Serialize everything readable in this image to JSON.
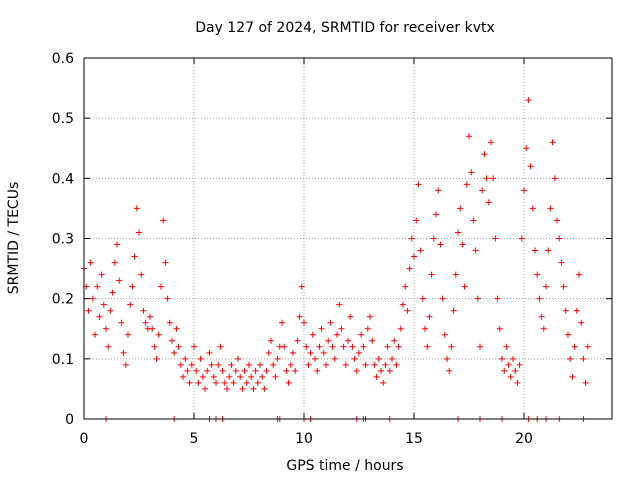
{
  "chart_data": {
    "type": "scatter",
    "title": "Day 127 of 2024, SRMTID for receiver kvtx",
    "xlabel": "GPS time / hours",
    "ylabel": "SRMTID / TECUs",
    "xlim": [
      0,
      24
    ],
    "ylim": [
      0,
      0.6
    ],
    "x_ticks": [
      0,
      5,
      10,
      15,
      20
    ],
    "y_ticks": [
      0,
      0.1,
      0.2,
      0.3,
      0.4,
      0.5,
      0.6
    ],
    "x_tick_labels": [
      "0",
      "5",
      "10",
      "15",
      "20"
    ],
    "y_tick_labels": [
      "0",
      "0.1",
      "0.2",
      "0.3",
      "0.4",
      "0.5",
      "0.6"
    ],
    "grid": true,
    "marker": "plus",
    "series": [
      {
        "name": "SRMTID",
        "color": "#ff0000",
        "points": [
          [
            0.0,
            0.25
          ],
          [
            0.1,
            0.22
          ],
          [
            0.2,
            0.18
          ],
          [
            0.3,
            0.26
          ],
          [
            0.4,
            0.2
          ],
          [
            0.5,
            0.14
          ],
          [
            0.6,
            0.22
          ],
          [
            0.7,
            0.17
          ],
          [
            0.8,
            0.24
          ],
          [
            0.9,
            0.19
          ],
          [
            1.0,
            0.15
          ],
          [
            1.1,
            0.12
          ],
          [
            1.2,
            0.18
          ],
          [
            1.3,
            0.21
          ],
          [
            1.4,
            0.26
          ],
          [
            1.5,
            0.29
          ],
          [
            1.6,
            0.23
          ],
          [
            1.7,
            0.16
          ],
          [
            1.8,
            0.11
          ],
          [
            1.9,
            0.09
          ],
          [
            2.0,
            0.14
          ],
          [
            2.1,
            0.19
          ],
          [
            2.2,
            0.22
          ],
          [
            2.3,
            0.27
          ],
          [
            2.4,
            0.35
          ],
          [
            2.5,
            0.31
          ],
          [
            2.6,
            0.24
          ],
          [
            2.7,
            0.18
          ],
          [
            2.8,
            0.16
          ],
          [
            2.9,
            0.15
          ],
          [
            3.0,
            0.17
          ],
          [
            3.1,
            0.15
          ],
          [
            3.2,
            0.12
          ],
          [
            3.3,
            0.1
          ],
          [
            3.4,
            0.14
          ],
          [
            3.5,
            0.22
          ],
          [
            3.6,
            0.33
          ],
          [
            3.7,
            0.26
          ],
          [
            3.8,
            0.2
          ],
          [
            3.9,
            0.16
          ],
          [
            4.0,
            0.13
          ],
          [
            4.1,
            0.11
          ],
          [
            4.2,
            0.15
          ],
          [
            4.3,
            0.12
          ],
          [
            4.4,
            0.09
          ],
          [
            4.5,
            0.07
          ],
          [
            4.6,
            0.1
          ],
          [
            4.7,
            0.08
          ],
          [
            4.8,
            0.06
          ],
          [
            4.9,
            0.09
          ],
          [
            5.0,
            0.12
          ],
          [
            5.1,
            0.08
          ],
          [
            5.2,
            0.06
          ],
          [
            5.3,
            0.1
          ],
          [
            5.4,
            0.07
          ],
          [
            5.5,
            0.05
          ],
          [
            5.6,
            0.08
          ],
          [
            5.7,
            0.11
          ],
          [
            5.8,
            0.09
          ],
          [
            5.9,
            0.07
          ],
          [
            6.0,
            0.06
          ],
          [
            6.1,
            0.09
          ],
          [
            6.2,
            0.12
          ],
          [
            6.3,
            0.08
          ],
          [
            6.4,
            0.06
          ],
          [
            6.5,
            0.05
          ],
          [
            6.6,
            0.07
          ],
          [
            6.7,
            0.09
          ],
          [
            6.8,
            0.06
          ],
          [
            6.9,
            0.08
          ],
          [
            7.0,
            0.1
          ],
          [
            7.1,
            0.07
          ],
          [
            7.2,
            0.05
          ],
          [
            7.3,
            0.08
          ],
          [
            7.4,
            0.06
          ],
          [
            7.5,
            0.09
          ],
          [
            7.6,
            0.07
          ],
          [
            7.7,
            0.05
          ],
          [
            7.8,
            0.08
          ],
          [
            7.9,
            0.06
          ],
          [
            8.0,
            0.09
          ],
          [
            8.1,
            0.07
          ],
          [
            8.2,
            0.05
          ],
          [
            8.3,
            0.08
          ],
          [
            8.4,
            0.11
          ],
          [
            8.5,
            0.13
          ],
          [
            8.6,
            0.09
          ],
          [
            8.7,
            0.07
          ],
          [
            8.8,
            0.1
          ],
          [
            8.9,
            0.12
          ],
          [
            9.0,
            0.16
          ],
          [
            9.1,
            0.12
          ],
          [
            9.2,
            0.08
          ],
          [
            9.3,
            0.06
          ],
          [
            9.4,
            0.09
          ],
          [
            9.5,
            0.11
          ],
          [
            9.6,
            0.08
          ],
          [
            9.7,
            0.13
          ],
          [
            9.8,
            0.17
          ],
          [
            9.9,
            0.22
          ],
          [
            10.0,
            0.16
          ],
          [
            10.1,
            0.12
          ],
          [
            10.2,
            0.09
          ],
          [
            10.3,
            0.11
          ],
          [
            10.4,
            0.14
          ],
          [
            10.5,
            0.1
          ],
          [
            10.6,
            0.08
          ],
          [
            10.7,
            0.12
          ],
          [
            10.8,
            0.15
          ],
          [
            10.9,
            0.11
          ],
          [
            11.0,
            0.09
          ],
          [
            11.1,
            0.13
          ],
          [
            11.2,
            0.16
          ],
          [
            11.3,
            0.12
          ],
          [
            11.4,
            0.1
          ],
          [
            11.5,
            0.14
          ],
          [
            11.6,
            0.19
          ],
          [
            11.7,
            0.15
          ],
          [
            11.8,
            0.12
          ],
          [
            11.9,
            0.09
          ],
          [
            12.0,
            0.13
          ],
          [
            12.1,
            0.17
          ],
          [
            12.2,
            0.12
          ],
          [
            12.3,
            0.1
          ],
          [
            12.4,
            0.08
          ],
          [
            12.5,
            0.11
          ],
          [
            12.6,
            0.14
          ],
          [
            12.7,
            0.12
          ],
          [
            12.8,
            0.09
          ],
          [
            12.9,
            0.15
          ],
          [
            13.0,
            0.17
          ],
          [
            13.1,
            0.13
          ],
          [
            13.2,
            0.09
          ],
          [
            13.3,
            0.07
          ],
          [
            13.4,
            0.1
          ],
          [
            13.5,
            0.08
          ],
          [
            13.6,
            0.06
          ],
          [
            13.7,
            0.09
          ],
          [
            13.8,
            0.12
          ],
          [
            13.9,
            0.08
          ],
          [
            14.0,
            0.1
          ],
          [
            14.1,
            0.13
          ],
          [
            14.2,
            0.09
          ],
          [
            14.3,
            0.12
          ],
          [
            14.4,
            0.15
          ],
          [
            14.5,
            0.19
          ],
          [
            14.6,
            0.22
          ],
          [
            14.7,
            0.18
          ],
          [
            14.8,
            0.25
          ],
          [
            14.9,
            0.3
          ],
          [
            15.0,
            0.27
          ],
          [
            15.1,
            0.33
          ],
          [
            15.2,
            0.39
          ],
          [
            15.3,
            0.28
          ],
          [
            15.4,
            0.2
          ],
          [
            15.5,
            0.15
          ],
          [
            15.6,
            0.12
          ],
          [
            15.7,
            0.17
          ],
          [
            15.8,
            0.24
          ],
          [
            15.9,
            0.3
          ],
          [
            16.0,
            0.34
          ],
          [
            16.1,
            0.38
          ],
          [
            16.2,
            0.29
          ],
          [
            16.3,
            0.2
          ],
          [
            16.4,
            0.14
          ],
          [
            16.5,
            0.1
          ],
          [
            16.6,
            0.08
          ],
          [
            16.7,
            0.12
          ],
          [
            16.8,
            0.18
          ],
          [
            16.9,
            0.24
          ],
          [
            17.0,
            0.31
          ],
          [
            17.1,
            0.35
          ],
          [
            17.2,
            0.29
          ],
          [
            17.3,
            0.22
          ],
          [
            17.4,
            0.39
          ],
          [
            17.5,
            0.47
          ],
          [
            17.6,
            0.41
          ],
          [
            17.7,
            0.33
          ],
          [
            17.8,
            0.28
          ],
          [
            17.9,
            0.2
          ],
          [
            18.0,
            0.12
          ],
          [
            18.1,
            0.38
          ],
          [
            18.2,
            0.44
          ],
          [
            18.3,
            0.4
          ],
          [
            18.4,
            0.36
          ],
          [
            18.5,
            0.46
          ],
          [
            18.6,
            0.4
          ],
          [
            18.7,
            0.3
          ],
          [
            18.8,
            0.2
          ],
          [
            18.9,
            0.15
          ],
          [
            19.0,
            0.1
          ],
          [
            19.1,
            0.08
          ],
          [
            19.2,
            0.12
          ],
          [
            19.3,
            0.09
          ],
          [
            19.4,
            0.07
          ],
          [
            19.5,
            0.1
          ],
          [
            19.6,
            0.08
          ],
          [
            19.7,
            0.06
          ],
          [
            19.8,
            0.09
          ],
          [
            19.9,
            0.3
          ],
          [
            20.0,
            0.38
          ],
          [
            20.1,
            0.45
          ],
          [
            20.2,
            0.53
          ],
          [
            20.3,
            0.42
          ],
          [
            20.4,
            0.35
          ],
          [
            20.5,
            0.28
          ],
          [
            20.6,
            0.24
          ],
          [
            20.7,
            0.2
          ],
          [
            20.8,
            0.17
          ],
          [
            20.9,
            0.15
          ],
          [
            21.0,
            0.22
          ],
          [
            21.1,
            0.28
          ],
          [
            21.2,
            0.35
          ],
          [
            21.3,
            0.46
          ],
          [
            21.4,
            0.4
          ],
          [
            21.5,
            0.33
          ],
          [
            21.6,
            0.3
          ],
          [
            21.7,
            0.26
          ],
          [
            21.8,
            0.22
          ],
          [
            21.9,
            0.18
          ],
          [
            22.0,
            0.14
          ],
          [
            22.1,
            0.1
          ],
          [
            22.2,
            0.07
          ],
          [
            22.3,
            0.12
          ],
          [
            22.4,
            0.18
          ],
          [
            22.5,
            0.24
          ],
          [
            22.6,
            0.16
          ],
          [
            22.7,
            0.1
          ],
          [
            22.8,
            0.06
          ],
          [
            22.9,
            0.12
          ]
        ],
        "zero_points": [
          1.0,
          4.1,
          5.7,
          6.0,
          6.3,
          8.8,
          8.9,
          10.0,
          10.3,
          12.4,
          12.7,
          12.8,
          13.9,
          17.0,
          18.0,
          19.0,
          20.2,
          20.6,
          21.0,
          21.6,
          22.7
        ]
      }
    ]
  }
}
